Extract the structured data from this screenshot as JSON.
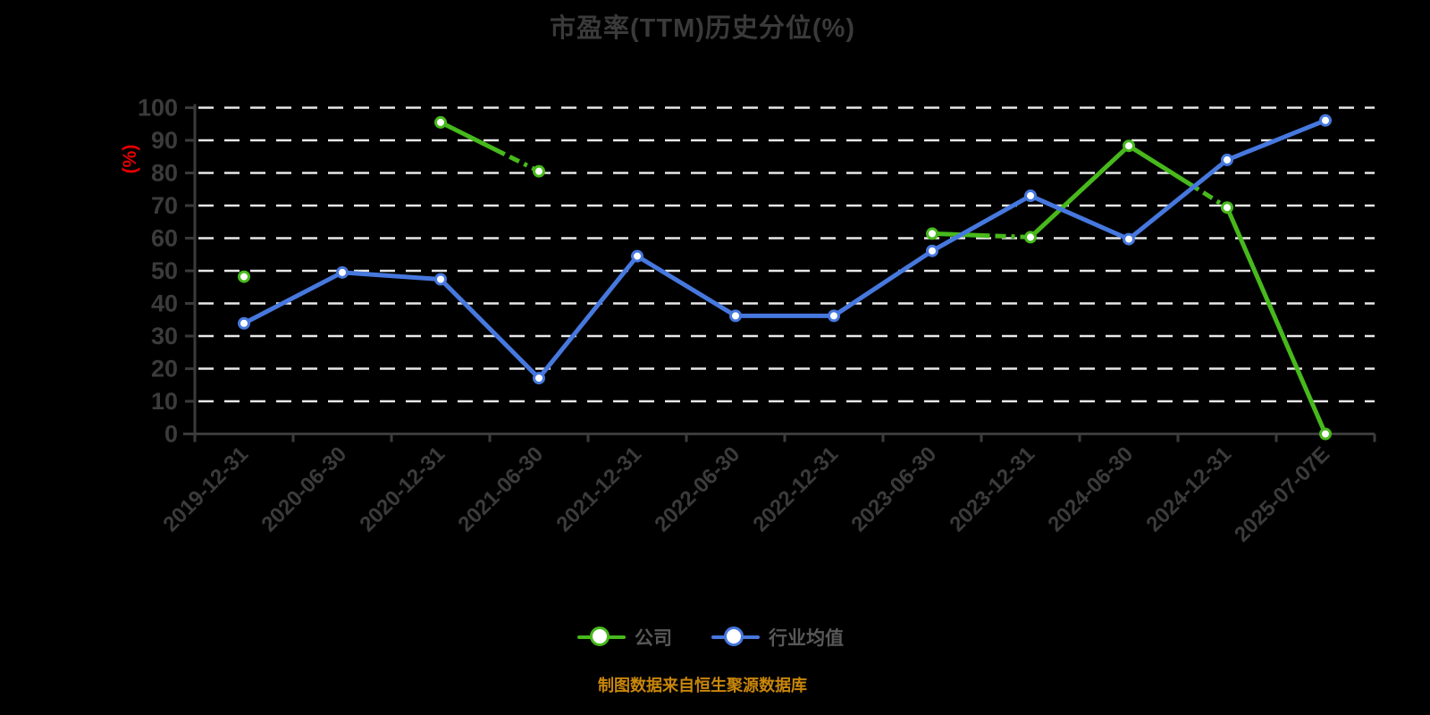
{
  "chart_data": {
    "type": "line",
    "title": "市盈率(TTM)历史分位(%)",
    "ylabel": "(%)",
    "categories": [
      "2019-12-31",
      "2020-06-30",
      "2020-12-31",
      "2021-06-30",
      "2021-12-31",
      "2022-06-30",
      "2022-12-31",
      "2023-06-30",
      "2023-12-31",
      "2024-06-30",
      "2024-12-31",
      "2025-07-07E"
    ],
    "series": [
      {
        "name": "公司",
        "color": "#47b91c",
        "line_style": "solid-with-dashdot-tails",
        "values": [
          48.2,
          null,
          95.5,
          80.5,
          null,
          null,
          null,
          61.4,
          60.3,
          88.3,
          69.4,
          0
        ],
        "dash_tails": [
          {
            "from": 2,
            "solid_until": 0.62
          },
          {
            "from": 7,
            "solid_until": 0.55
          },
          {
            "from": 9,
            "solid_until": 0.68
          }
        ]
      },
      {
        "name": "行业均值",
        "color": "#4678de",
        "line_style": "solid",
        "values": [
          33.9,
          49.5,
          47.4,
          17.1,
          54.5,
          36.2,
          36.2,
          56.1,
          73.0,
          59.7,
          84.0,
          96.1
        ]
      }
    ],
    "ylim": [
      0,
      100
    ],
    "y_ticks": [
      0,
      10,
      20,
      30,
      40,
      50,
      60,
      70,
      80,
      90,
      100
    ],
    "grid": "horizontal-dashed-white",
    "legend_position": "bottom"
  },
  "legend": {
    "items": [
      {
        "label": "公司",
        "color": "#47b91c"
      },
      {
        "label": "行业均值",
        "color": "#4678de"
      }
    ]
  },
  "footer": {
    "text": "制图数据来自恒生聚源数据库",
    "color": "#c8860b"
  },
  "colors": {
    "background": "#000000",
    "grid": "#e8e8e8",
    "axis": "#3b3b3b",
    "tick_text": "#3b3b3b",
    "title_text": "#3a3a3a",
    "y_unit_label": "#e60000",
    "marker_fill": "#ffffff"
  }
}
